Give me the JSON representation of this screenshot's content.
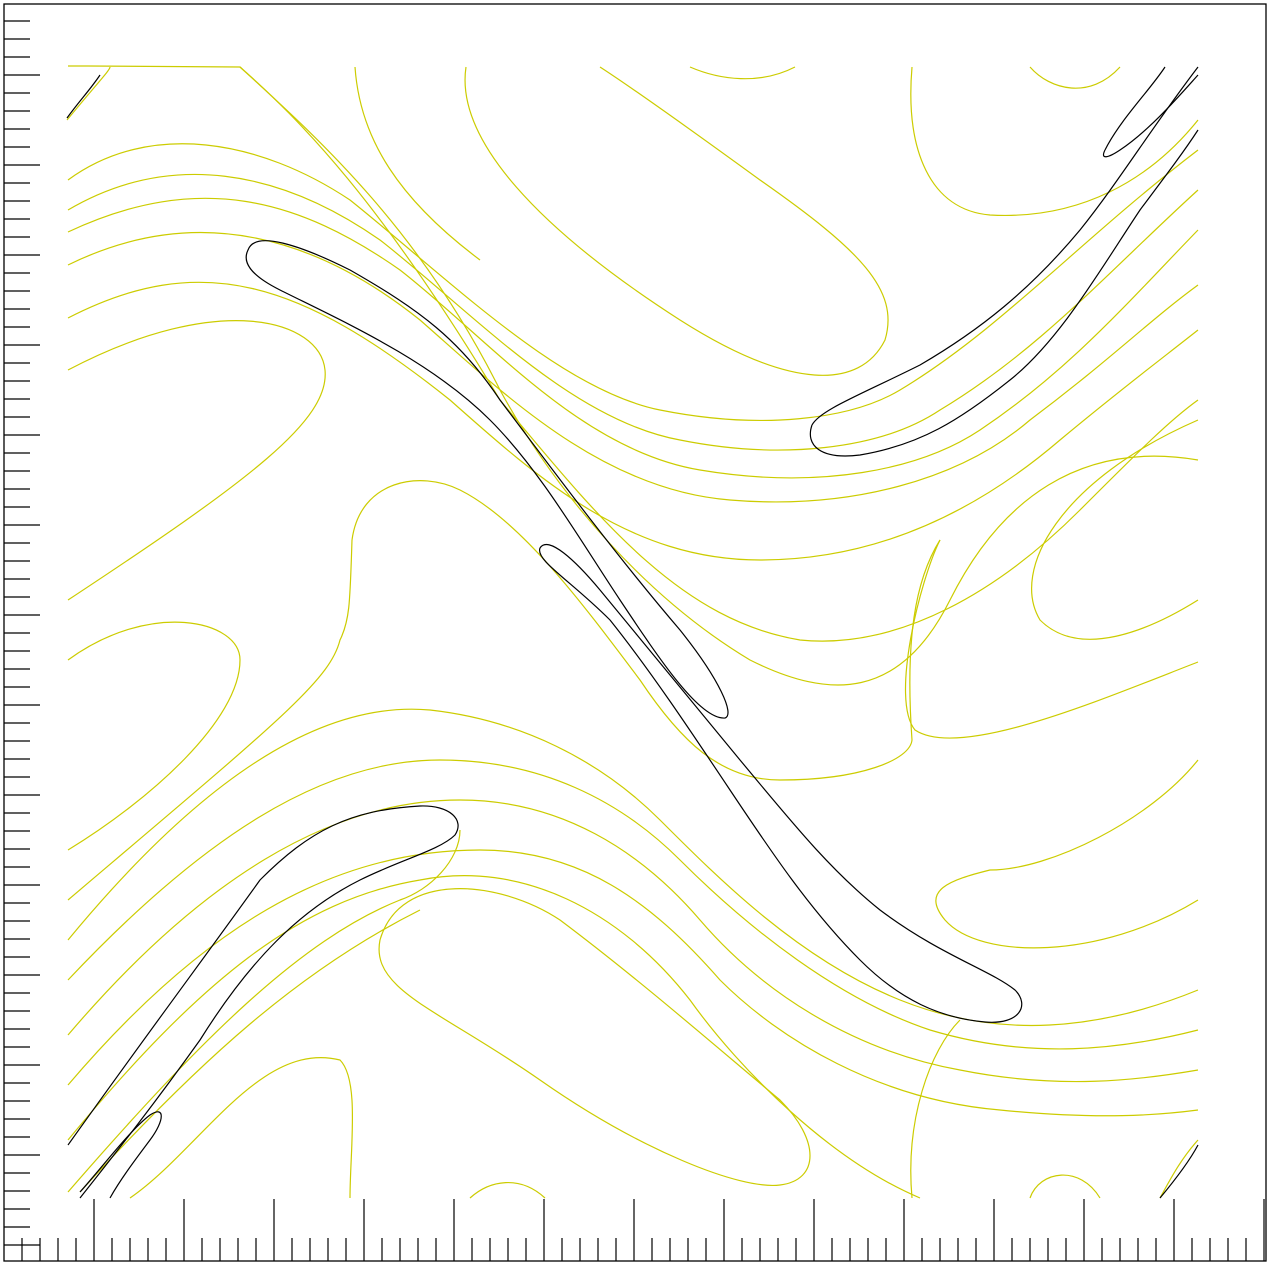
{
  "chart_data": {
    "type": "contour",
    "title": "",
    "xlabel": "",
    "ylabel": "",
    "xlim": [
      0,
      1
    ],
    "ylim": [
      0,
      1
    ],
    "grid": false,
    "legend": "none",
    "colors": {
      "frame": "#000000",
      "ticks": "#000000"
    },
    "series": [
      {
        "color": "#cccc00",
        "style": "smooth-contours"
      },
      {
        "color": "#000000",
        "style": "outer-contours"
      }
    ],
    "tick_labels": []
  }
}
